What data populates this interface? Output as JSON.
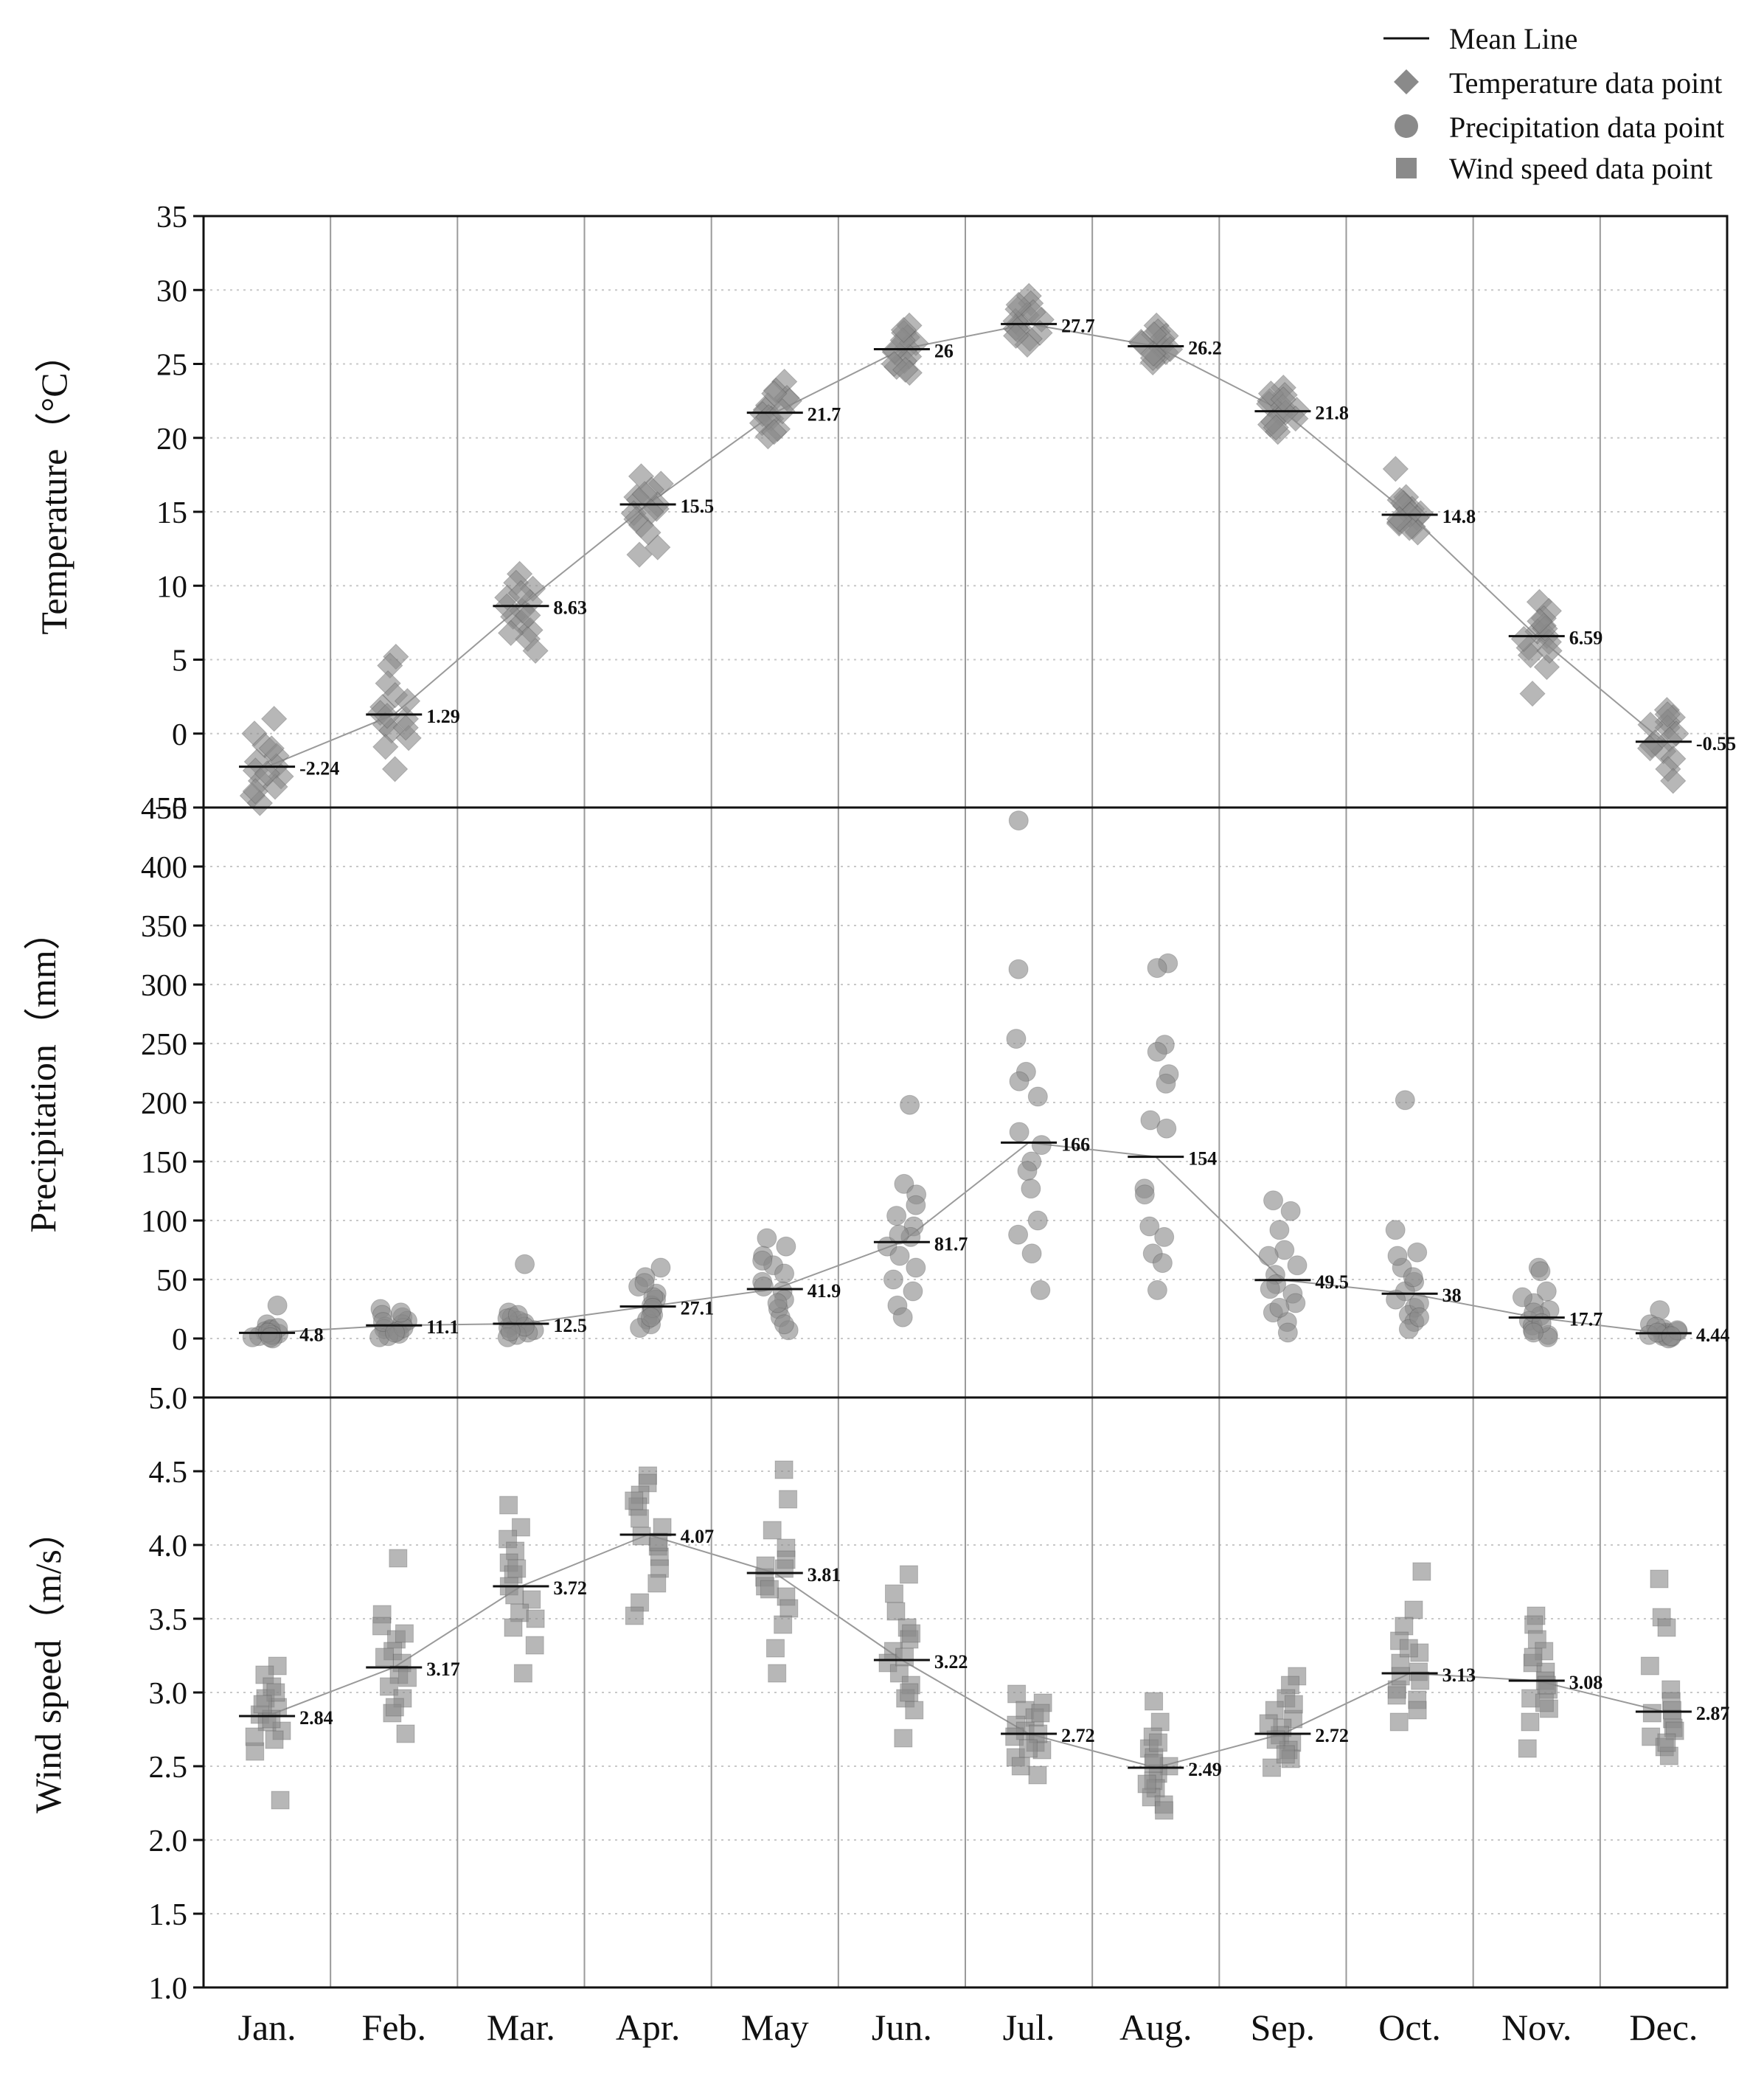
{
  "legend": {
    "placement": "top-right",
    "items": [
      {
        "label": "Mean Line",
        "marker": "line"
      },
      {
        "label": "Temperature data point",
        "marker": "diamond"
      },
      {
        "label": "Precipitation data point",
        "marker": "circle"
      },
      {
        "label": "Wind speed data point",
        "marker": "square"
      }
    ]
  },
  "colors": {
    "point": "#8a8a8a",
    "point_dark": "#3a3a3a",
    "mean_line": "#111111",
    "connector": "#9a9a9a",
    "grid": "#c8c8c8",
    "month_divider": "#9a9a9a",
    "frame": "#111111"
  },
  "chart_data": {
    "type": "scatter",
    "categories": [
      "Jan.",
      "Feb.",
      "Mar.",
      "Apr.",
      "May",
      "Jun.",
      "Jul.",
      "Aug.",
      "Sep.",
      "Oct.",
      "Nov.",
      "Dec."
    ],
    "panels": [
      {
        "id": "temperature",
        "ylabel": "Temperature（°C）",
        "ylim": [
          -5,
          35
        ],
        "yticks": [
          -5,
          0,
          5,
          10,
          15,
          20,
          25,
          30,
          35
        ],
        "tick_labels": [
          "−5",
          "0",
          "5",
          "10",
          "15",
          "20",
          "25",
          "30",
          "35"
        ],
        "marker": "diamond",
        "means": [
          -2.24,
          1.29,
          8.63,
          15.5,
          21.7,
          26,
          27.7,
          26.2,
          21.8,
          14.8,
          6.59,
          -0.55
        ],
        "mean_labels": [
          "-2.24",
          "1.29",
          "8.63",
          "15.5",
          "21.7",
          "26",
          "27.7",
          "26.2",
          "21.8",
          "14.8",
          "6.59",
          "-0.55"
        ],
        "points": [
          [
            1.0,
            0.0,
            -0.8,
            -1.5,
            -1.9,
            -2.2,
            -2.5,
            -2.9,
            -3.2,
            -3.6,
            -4.2,
            -4.7,
            -1.0,
            -2.7,
            -3.9
          ],
          [
            5.2,
            4.6,
            3.4,
            2.6,
            1.8,
            1.4,
            1.0,
            0.6,
            0.2,
            -0.3,
            -0.9,
            -2.4,
            2.2,
            0.4,
            1.2
          ],
          [
            10.8,
            10.2,
            9.8,
            9.2,
            8.9,
            8.6,
            8.3,
            7.9,
            7.5,
            7.0,
            6.4,
            5.6,
            9.5,
            8.0,
            6.8
          ],
          [
            17.4,
            16.9,
            16.5,
            16.0,
            15.8,
            15.5,
            15.2,
            14.9,
            14.5,
            14.1,
            12.6,
            12.1,
            16.2,
            15.0,
            13.6
          ],
          [
            23.8,
            23.2,
            22.7,
            22.2,
            21.9,
            21.6,
            21.3,
            21.0,
            20.6,
            20.1,
            22.5,
            21.4,
            20.4,
            23.0,
            21.8
          ],
          [
            27.6,
            27.1,
            26.8,
            26.4,
            26.1,
            25.8,
            25.5,
            25.2,
            24.8,
            24.4,
            26.6,
            25.9,
            25.0,
            27.3,
            24.6
          ],
          [
            29.6,
            29.1,
            28.7,
            28.3,
            28.0,
            27.7,
            27.4,
            27.1,
            26.7,
            26.3,
            28.5,
            27.9,
            27.3,
            29.0,
            26.9
          ],
          [
            27.6,
            27.2,
            26.9,
            26.5,
            26.3,
            26.1,
            25.8,
            25.5,
            25.1,
            26.7,
            26.0,
            25.4,
            27.0,
            25.7,
            26.4
          ],
          [
            23.4,
            22.9,
            22.5,
            22.1,
            21.9,
            21.6,
            21.3,
            20.9,
            20.4,
            22.3,
            21.7,
            21.1,
            23.0,
            20.7,
            22.6
          ],
          [
            17.9,
            16.0,
            15.6,
            15.2,
            14.9,
            14.6,
            14.3,
            14.0,
            13.6,
            15.4,
            14.8,
            14.2,
            15.8,
            13.9,
            14.5
          ],
          [
            8.9,
            8.3,
            7.8,
            7.3,
            6.9,
            6.6,
            6.2,
            5.8,
            5.3,
            4.5,
            2.7,
            7.1,
            6.4,
            5.6,
            7.6
          ],
          [
            1.6,
            1.1,
            0.8,
            0.4,
            0.0,
            -0.4,
            -0.8,
            -1.2,
            -1.7,
            -2.4,
            -3.2,
            0.6,
            -0.6,
            -1.0,
            1.3
          ]
        ]
      },
      {
        "id": "precipitation",
        "ylabel": "Precipitation（mm）",
        "ylim": [
          -50,
          450
        ],
        "yticks": [
          0,
          50,
          100,
          150,
          200,
          250,
          300,
          350,
          400,
          450
        ],
        "tick_labels": [
          "0",
          "50",
          "100",
          "150",
          "200",
          "250",
          "300",
          "350",
          "400",
          "450"
        ],
        "marker": "circle",
        "means": [
          4.8,
          11.1,
          12.5,
          27.1,
          41.9,
          81.7,
          166,
          154,
          49.5,
          38,
          17.7,
          4.44
        ],
        "mean_labels": [
          "4.8",
          "11.1",
          "12.5",
          "27.1",
          "41.9",
          "81.7",
          "166",
          "154",
          "49.5",
          "38",
          "17.7",
          "4.44"
        ],
        "points": [
          [
            28,
            12,
            8,
            6,
            5,
            4,
            3,
            2,
            1,
            0,
            7,
            9,
            3,
            5,
            1
          ],
          [
            25,
            20,
            18,
            15,
            12,
            10,
            8,
            6,
            4,
            2,
            1,
            14,
            9,
            22,
            5
          ],
          [
            63,
            22,
            18,
            15,
            13,
            11,
            9,
            7,
            5,
            3,
            1,
            17,
            10,
            6,
            20
          ],
          [
            60,
            52,
            44,
            38,
            33,
            28,
            24,
            20,
            16,
            12,
            9,
            35,
            26,
            18,
            47
          ],
          [
            85,
            78,
            70,
            62,
            55,
            48,
            40,
            33,
            25,
            18,
            7,
            66,
            44,
            30,
            12
          ],
          [
            198,
            131,
            122,
            113,
            104,
            95,
            86,
            78,
            70,
            60,
            50,
            40,
            28,
            18,
            88
          ],
          [
            439,
            313,
            254,
            226,
            218,
            205,
            175,
            164,
            150,
            142,
            127,
            100,
            88,
            72,
            41
          ],
          [
            318,
            314,
            249,
            243,
            224,
            216,
            185,
            178,
            127,
            122,
            95,
            86,
            72,
            64,
            41
          ],
          [
            117,
            108,
            92,
            75,
            62,
            54,
            46,
            38,
            30,
            22,
            14,
            5,
            70,
            42,
            26
          ],
          [
            202,
            92,
            73,
            60,
            48,
            40,
            33,
            26,
            20,
            14,
            8,
            70,
            30,
            52,
            18
          ],
          [
            60,
            57,
            40,
            30,
            24,
            19,
            15,
            11,
            7,
            3,
            1,
            22,
            13,
            35,
            5
          ],
          [
            24,
            12,
            8,
            6,
            5,
            4,
            3,
            2,
            1,
            0,
            7,
            10,
            3,
            5,
            2
          ]
        ]
      },
      {
        "id": "wind_speed",
        "ylabel": "Wind speed（m/s）",
        "ylim": [
          1.0,
          5.0
        ],
        "yticks": [
          1.0,
          1.5,
          2.0,
          2.5,
          3.0,
          3.5,
          4.0,
          4.5,
          5.0
        ],
        "tick_labels": [
          "1.0",
          "1.5",
          "2.0",
          "2.5",
          "3.0",
          "3.5",
          "4.0",
          "4.5",
          "5.0"
        ],
        "marker": "square",
        "means": [
          2.84,
          3.17,
          3.72,
          4.07,
          3.81,
          3.22,
          2.72,
          2.49,
          2.72,
          3.13,
          3.08,
          2.87
        ],
        "mean_labels": [
          "2.84",
          "3.17",
          "3.72",
          "4.07",
          "3.81",
          "3.22",
          "2.72",
          "2.49",
          "2.72",
          "3.13",
          "3.08",
          "2.87"
        ],
        "points": [
          [
            3.18,
            3.12,
            3.04,
            2.96,
            2.9,
            2.85,
            2.8,
            2.74,
            2.68,
            2.6,
            2.27,
            3.0,
            2.82,
            2.7,
            2.92
          ],
          [
            3.91,
            3.53,
            3.45,
            3.36,
            3.28,
            3.2,
            3.12,
            3.04,
            2.96,
            2.86,
            2.72,
            3.4,
            3.1,
            2.9,
            3.24
          ],
          [
            4.27,
            4.12,
            4.04,
            3.96,
            3.88,
            3.8,
            3.72,
            3.63,
            3.54,
            3.44,
            3.32,
            3.13,
            3.84,
            3.66,
            3.5
          ],
          [
            4.47,
            4.42,
            4.34,
            4.26,
            4.18,
            4.12,
            4.06,
            3.99,
            3.92,
            3.84,
            3.74,
            3.61,
            3.52,
            4.3,
            4.02
          ],
          [
            4.51,
            4.31,
            4.1,
            3.98,
            3.9,
            3.84,
            3.78,
            3.72,
            3.65,
            3.57,
            3.46,
            3.3,
            3.13,
            3.86,
            3.7
          ],
          [
            3.8,
            3.67,
            3.55,
            3.44,
            3.36,
            3.28,
            3.2,
            3.13,
            3.05,
            2.96,
            2.88,
            2.69,
            3.4,
            3.24,
            3.0
          ],
          [
            2.99,
            2.93,
            2.88,
            2.83,
            2.78,
            2.74,
            2.7,
            2.66,
            2.61,
            2.56,
            2.5,
            2.44,
            2.86,
            2.72,
            2.62
          ],
          [
            2.94,
            2.8,
            2.7,
            2.62,
            2.56,
            2.5,
            2.45,
            2.4,
            2.35,
            2.29,
            2.24,
            2.2,
            2.66,
            2.52,
            2.38
          ],
          [
            3.11,
            3.05,
            2.96,
            2.88,
            2.82,
            2.76,
            2.71,
            2.66,
            2.61,
            2.55,
            2.49,
            2.92,
            2.79,
            2.68,
            2.58
          ],
          [
            3.82,
            3.56,
            3.45,
            3.35,
            3.27,
            3.2,
            3.14,
            3.08,
            3.02,
            2.95,
            2.88,
            2.8,
            3.3,
            3.11,
            2.98
          ],
          [
            3.52,
            3.46,
            3.36,
            3.28,
            3.2,
            3.14,
            3.08,
            3.02,
            2.96,
            2.89,
            2.8,
            2.62,
            3.24,
            3.05,
            2.93
          ],
          [
            3.77,
            3.51,
            3.44,
            3.18,
            3.02,
            2.94,
            2.88,
            2.82,
            2.76,
            2.7,
            2.63,
            2.57,
            2.86,
            2.74,
            2.66
          ]
        ]
      }
    ]
  }
}
